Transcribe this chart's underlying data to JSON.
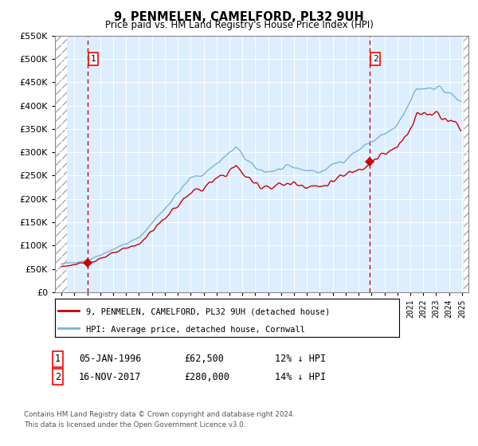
{
  "title": "9, PENMELEN, CAMELFORD, PL32 9UH",
  "subtitle": "Price paid vs. HM Land Registry's House Price Index (HPI)",
  "sale1_date": "05-JAN-1996",
  "sale1_price": 62500,
  "sale1_pct": "12% ↓ HPI",
  "sale2_date": "16-NOV-2017",
  "sale2_price": 280000,
  "sale2_pct": "14% ↓ HPI",
  "legend_label1": "9, PENMELEN, CAMELFORD, PL32 9UH (detached house)",
  "legend_label2": "HPI: Average price, detached house, Cornwall",
  "footer": "Contains HM Land Registry data © Crown copyright and database right 2024.\nThis data is licensed under the Open Government Licence v3.0.",
  "hpi_color": "#7ab4d8",
  "price_color": "#cc0000",
  "vline_color": "#cc0000",
  "background_plot": "#ddeeff",
  "ylim": [
    0,
    550000
  ],
  "yticks": [
    0,
    50000,
    100000,
    150000,
    200000,
    250000,
    300000,
    350000,
    400000,
    450000,
    500000,
    550000
  ],
  "sale1_year": 1996.04,
  "sale2_year": 2017.88,
  "xmin": 1994.0,
  "xmax": 2025.5
}
